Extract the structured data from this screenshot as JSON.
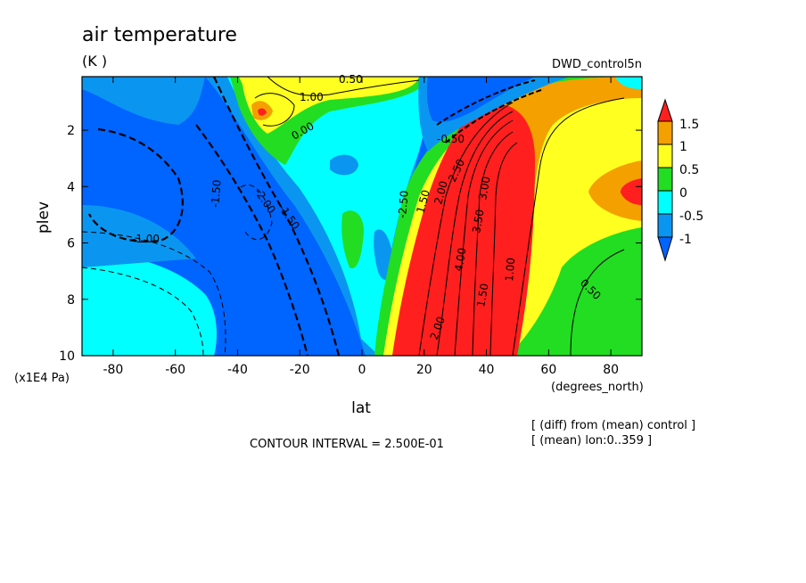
{
  "chart_data": {
    "type": "heatmap",
    "title": "air temperature",
    "units": "(K )",
    "run_label": "DWD_control5n",
    "xlabel": "lat",
    "x_units": "(degrees_north)",
    "ylabel": "plev",
    "y_units": "(x1E4 Pa)",
    "x_ticks": [
      -80,
      -60,
      -40,
      -20,
      0,
      20,
      40,
      60,
      80
    ],
    "y_ticks": [
      2,
      4,
      6,
      8,
      10
    ],
    "xlim": [
      -90,
      90
    ],
    "ylim": [
      10,
      0.1
    ],
    "colorbar": {
      "labels": [
        "1.5",
        "1",
        "0.5",
        "0",
        "-0.5",
        "-1"
      ],
      "colors": [
        "#ff1f1f",
        "#f4a000",
        "#ffff20",
        "#22dd22",
        "#00ffff",
        "#0a96f0",
        "#0064ff"
      ]
    },
    "contour_labels": [
      "0.50",
      "1.00",
      "0.00",
      "-0.50",
      "1.50",
      "2.00",
      "2.50",
      "3.00",
      "3.50",
      "4.00",
      "0.50",
      "1.00",
      "1.50",
      "2.00",
      "-1.00",
      "-1.50",
      "-2.00",
      "-1.50",
      "-2.50"
    ],
    "contour_interval": "CONTOUR INTERVAL = 2.500E-01",
    "notes": [
      "[ (diff) from (mean) control ]",
      "[ (mean) lon:0..359 ]"
    ]
  }
}
